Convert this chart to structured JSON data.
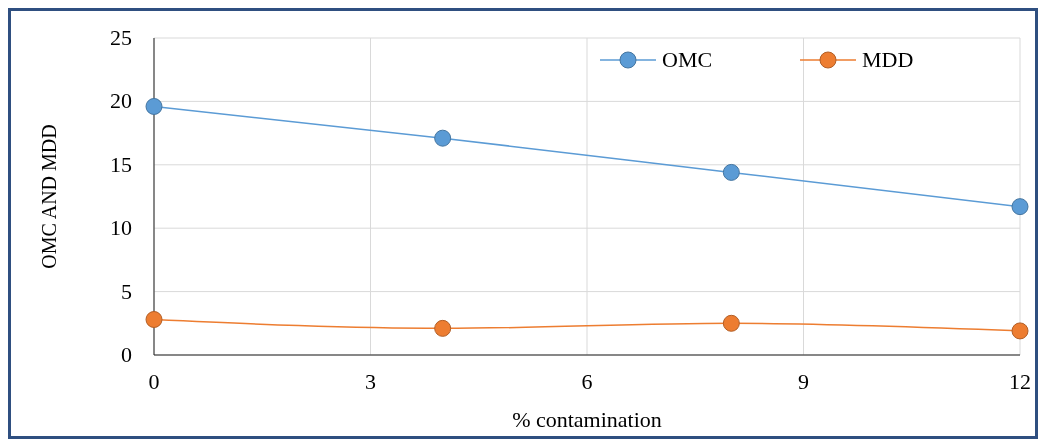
{
  "chart_data": {
    "type": "line",
    "xlabel": "% contamination",
    "ylabel": "OMC AND MDD",
    "x": [
      0,
      4,
      8,
      12
    ],
    "series": [
      {
        "name": "OMC",
        "color": "#5b9bd5",
        "values": [
          19.6,
          17.1,
          14.4,
          11.7
        ]
      },
      {
        "name": "MDD",
        "color": "#ed7d31",
        "values": [
          2.8,
          2.1,
          2.5,
          1.9
        ]
      }
    ],
    "xlim": [
      0,
      12
    ],
    "xticks": [
      0,
      3,
      6,
      9,
      12
    ],
    "ylim": [
      0,
      25
    ],
    "yticks": [
      0,
      5,
      10,
      15,
      20,
      25
    ],
    "grid": true,
    "legend": "top right",
    "marker": "circle"
  }
}
